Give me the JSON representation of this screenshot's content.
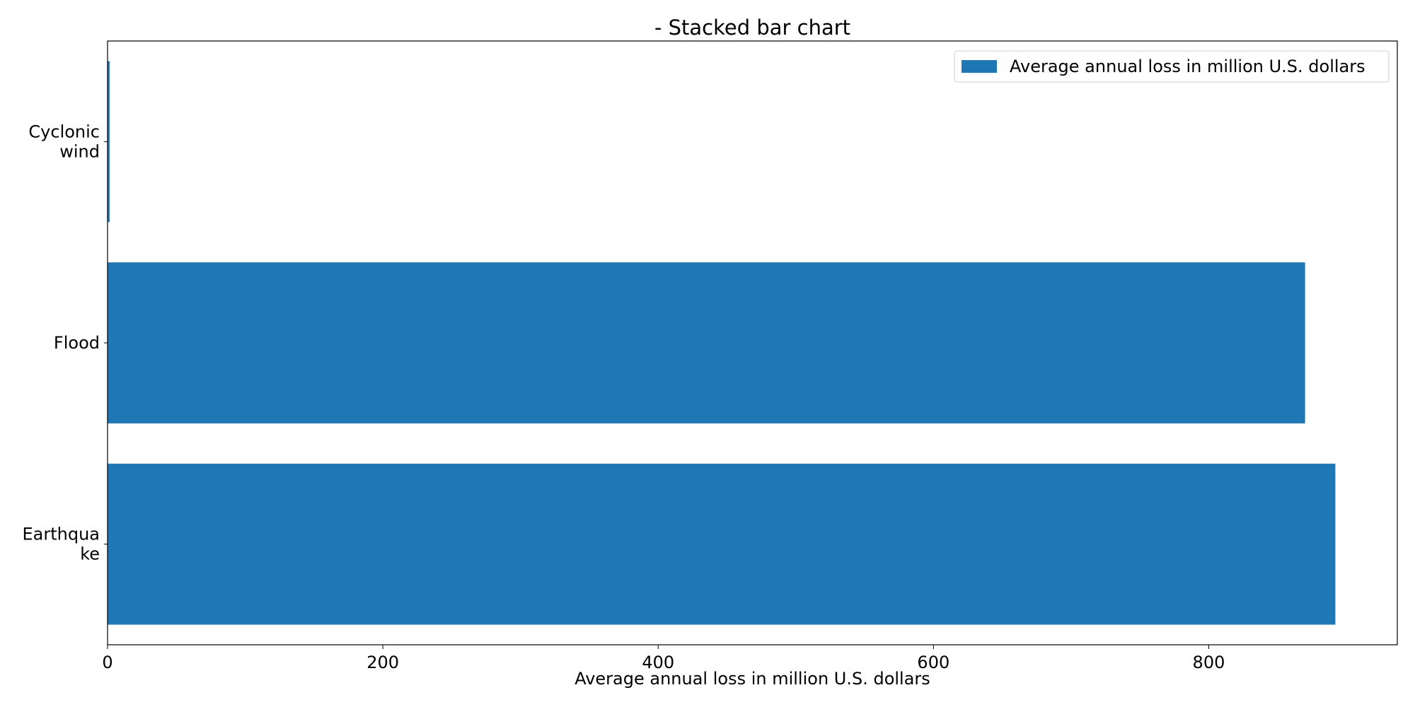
{
  "chart_data": {
    "type": "bar",
    "orientation": "horizontal",
    "title": "- Stacked bar chart",
    "xlabel": "Average annual loss in million U.S. dollars",
    "ylabel": "",
    "categories": [
      "Cyclonic wind",
      "Flood",
      "Earthquake"
    ],
    "category_tick_lines": [
      [
        "Cyclonic",
        "wind"
      ],
      [
        "Flood"
      ],
      [
        "Earthqua",
        "ke"
      ]
    ],
    "series": [
      {
        "name": "Average annual loss in million U.S. dollars",
        "values": [
          1.5,
          870,
          892
        ],
        "color": "#1f77b4"
      }
    ],
    "xlim": [
      0,
      937
    ],
    "xticks": [
      0,
      200,
      400,
      600,
      800
    ],
    "legend": "top-right",
    "grid": false
  }
}
